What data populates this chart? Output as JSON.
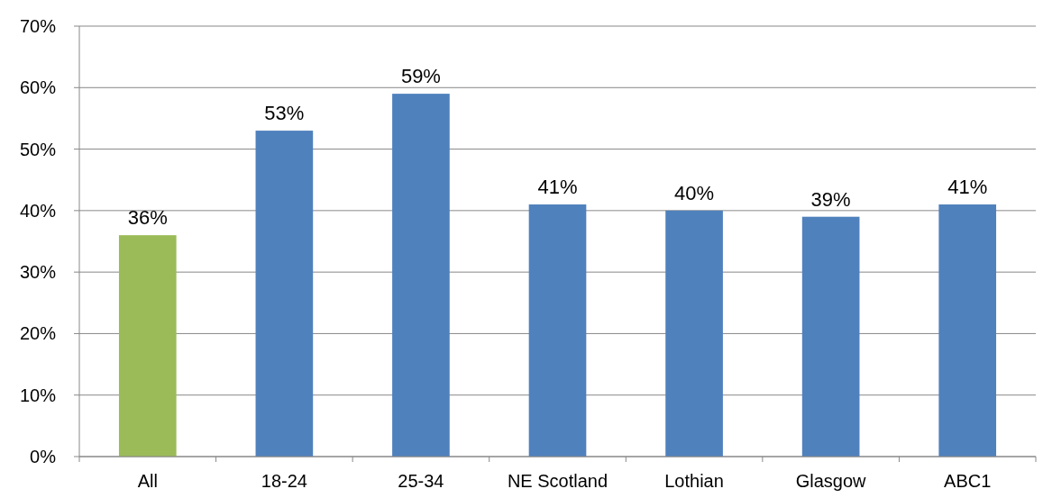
{
  "chart_data": {
    "type": "bar",
    "categories": [
      "All",
      "18-24",
      "25-34",
      "NE Scotland",
      "Lothian",
      "Glasgow",
      "ABC1"
    ],
    "values": [
      36,
      53,
      59,
      41,
      40,
      39,
      41
    ],
    "colors": [
      "#9bbb59",
      "#4f81bd",
      "#4f81bd",
      "#4f81bd",
      "#4f81bd",
      "#4f81bd",
      "#4f81bd"
    ],
    "value_labels": [
      "36%",
      "53%",
      "59%",
      "41%",
      "40%",
      "39%",
      "41%"
    ],
    "ylim": [
      0,
      70
    ],
    "yticks": [
      {
        "value": 0,
        "label": "0%"
      },
      {
        "value": 10,
        "label": "10%"
      },
      {
        "value": 20,
        "label": "20%"
      },
      {
        "value": 30,
        "label": "30%"
      },
      {
        "value": 40,
        "label": "40%"
      },
      {
        "value": 50,
        "label": "50%"
      },
      {
        "value": 60,
        "label": "60%"
      },
      {
        "value": 70,
        "label": "70%"
      }
    ],
    "grid": "y"
  }
}
